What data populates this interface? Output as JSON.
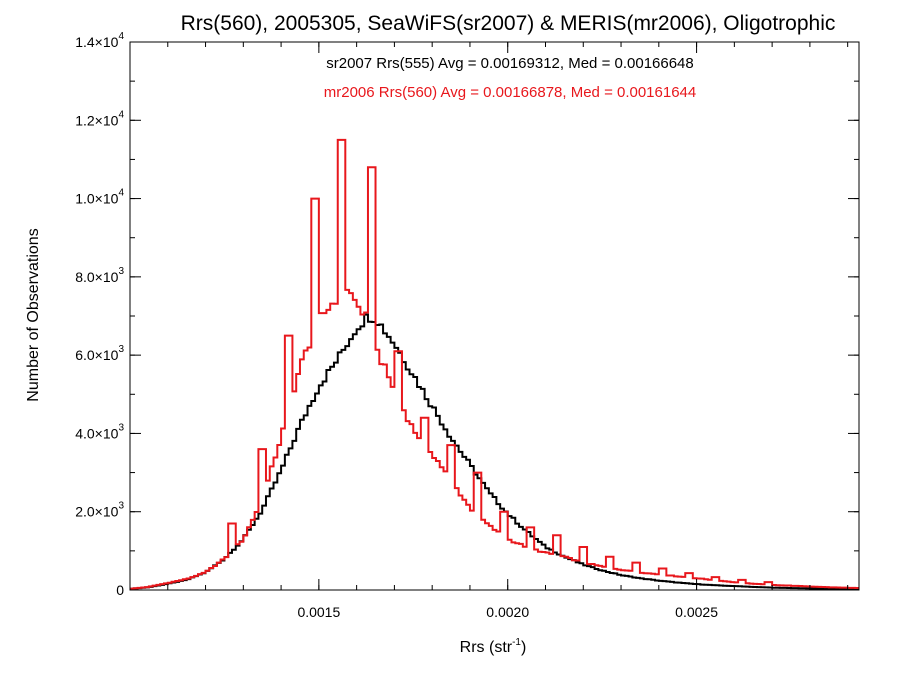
{
  "chart_data": {
    "type": "step-histogram",
    "title": "Rrs(560), 2005305, SeaWiFS(sr2007) & MERIS(mr2006), Oligotrophic",
    "xlabel": {
      "base": "Rrs (str",
      "sup": "-1",
      "close": ")"
    },
    "ylabel": "Number of Observations",
    "xlim": [
      0.001,
      0.00293
    ],
    "ylim": [
      0,
      14000
    ],
    "xticks": [
      {
        "value": 0.0015,
        "label": "0.0015"
      },
      {
        "value": 0.002,
        "label": "0.0020"
      },
      {
        "value": 0.0025,
        "label": "0.0025"
      }
    ],
    "xminor_step": 0.0001,
    "yticks": [
      {
        "value": 0,
        "mant": "0",
        "exp": ""
      },
      {
        "value": 2000,
        "mant": "2.0×10",
        "exp": "3"
      },
      {
        "value": 4000,
        "mant": "4.0×10",
        "exp": "3"
      },
      {
        "value": 6000,
        "mant": "6.0×10",
        "exp": "3"
      },
      {
        "value": 8000,
        "mant": "8.0×10",
        "exp": "3"
      },
      {
        "value": 10000,
        "mant": "1.0×10",
        "exp": "4"
      },
      {
        "value": 12000,
        "mant": "1.2×10",
        "exp": "4"
      },
      {
        "value": 14000,
        "mant": "1.4×10",
        "exp": "4"
      }
    ],
    "yminor_step": 1000,
    "bin_width": 1e-05,
    "series": [
      {
        "name": "sr2007 Rrs(555) Avg = 0.00169312, Med = 0.00166648",
        "color": "#000000",
        "points": [
          [
            0.001,
            30
          ],
          [
            0.00105,
            70
          ],
          [
            0.0011,
            160
          ],
          [
            0.00115,
            260
          ],
          [
            0.0012,
            450
          ],
          [
            0.00125,
            800
          ],
          [
            0.0013,
            1300
          ],
          [
            0.00135,
            2050
          ],
          [
            0.0014,
            3050
          ],
          [
            0.00145,
            4200
          ],
          [
            0.0015,
            5200
          ],
          [
            0.00155,
            5900
          ],
          [
            0.0016,
            6700
          ],
          [
            0.00163,
            7000
          ],
          [
            0.00165,
            6950
          ],
          [
            0.0017,
            6300
          ],
          [
            0.00175,
            5500
          ],
          [
            0.0018,
            4700
          ],
          [
            0.00185,
            3900
          ],
          [
            0.0019,
            3200
          ],
          [
            0.00195,
            2500
          ],
          [
            0.002,
            1950
          ],
          [
            0.00205,
            1500
          ],
          [
            0.0021,
            1100
          ],
          [
            0.00215,
            850
          ],
          [
            0.0022,
            650
          ],
          [
            0.00225,
            500
          ],
          [
            0.0023,
            380
          ],
          [
            0.00235,
            300
          ],
          [
            0.0024,
            240
          ],
          [
            0.00245,
            190
          ],
          [
            0.0025,
            150
          ],
          [
            0.00255,
            120
          ],
          [
            0.0026,
            100
          ],
          [
            0.00265,
            80
          ],
          [
            0.0027,
            60
          ],
          [
            0.00275,
            50
          ],
          [
            0.0028,
            40
          ],
          [
            0.00285,
            30
          ],
          [
            0.00293,
            20
          ]
        ],
        "spikes": []
      },
      {
        "name": "mr2006 Rrs(560) Avg = 0.00166878, Med = 0.00161644",
        "color": "#e8171c",
        "points": [
          [
            0.001,
            30
          ],
          [
            0.00105,
            80
          ],
          [
            0.0011,
            180
          ],
          [
            0.00115,
            280
          ],
          [
            0.0012,
            450
          ],
          [
            0.00125,
            800
          ],
          [
            0.0013,
            1300
          ],
          [
            0.00135,
            2300
          ],
          [
            0.0014,
            3900
          ],
          [
            0.00145,
            5700
          ],
          [
            0.0015,
            6900
          ],
          [
            0.00155,
            7500
          ],
          [
            0.00157,
            7800
          ],
          [
            0.0016,
            7300
          ],
          [
            0.00163,
            6900
          ],
          [
            0.00165,
            6200
          ],
          [
            0.0017,
            5100
          ],
          [
            0.00175,
            4100
          ],
          [
            0.0018,
            3500
          ],
          [
            0.00185,
            2800
          ],
          [
            0.0019,
            2100
          ],
          [
            0.00195,
            1650
          ],
          [
            0.002,
            1300
          ],
          [
            0.00205,
            1100
          ],
          [
            0.0021,
            950
          ],
          [
            0.00215,
            850
          ],
          [
            0.0022,
            700
          ],
          [
            0.00225,
            600
          ],
          [
            0.0023,
            520
          ],
          [
            0.00235,
            450
          ],
          [
            0.0024,
            400
          ],
          [
            0.00245,
            350
          ],
          [
            0.0025,
            300
          ],
          [
            0.00255,
            250
          ],
          [
            0.0026,
            200
          ],
          [
            0.00265,
            160
          ],
          [
            0.0027,
            130
          ],
          [
            0.00275,
            110
          ],
          [
            0.0028,
            90
          ],
          [
            0.00285,
            70
          ],
          [
            0.00293,
            50
          ]
        ],
        "spikes": [
          [
            0.00127,
            1700
          ],
          [
            0.00135,
            3600
          ],
          [
            0.00142,
            6500
          ],
          [
            0.00149,
            10000
          ],
          [
            0.00156,
            11500
          ],
          [
            0.00164,
            10800
          ],
          [
            0.00171,
            6100
          ],
          [
            0.00178,
            4400
          ],
          [
            0.00185,
            3700
          ],
          [
            0.00192,
            3000
          ],
          [
            0.00199,
            2000
          ],
          [
            0.00206,
            1600
          ],
          [
            0.00213,
            1400
          ],
          [
            0.0022,
            1100
          ],
          [
            0.00227,
            850
          ],
          [
            0.00234,
            700
          ],
          [
            0.00241,
            550
          ],
          [
            0.00248,
            430
          ],
          [
            0.00255,
            330
          ],
          [
            0.00262,
            260
          ],
          [
            0.00269,
            200
          ]
        ]
      }
    ]
  }
}
